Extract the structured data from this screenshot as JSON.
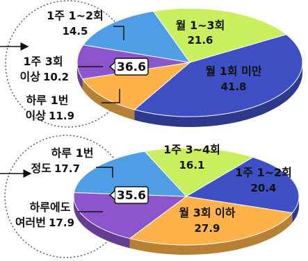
{
  "colors": {
    "sky_blue": "#4f9ee6",
    "lime": "#c9ef5e",
    "royal_blue": "#3f4fc4",
    "orange": "#ffb24a",
    "purple": "#8c55cc"
  },
  "chart_data": [
    {
      "type": "pie",
      "unit": "%",
      "callout_value": "36.6",
      "slices": [
        {
          "label": "월 1~3회",
          "value": 21.6,
          "value_text": "21.6",
          "color": "#c9ef5e"
        },
        {
          "label": "월 1회 미만",
          "value": 41.8,
          "value_text": "41.8",
          "color": "#3f4fc4"
        },
        {
          "label": "하루 1번 이상",
          "label_lines": [
            "하루 1번",
            "이상"
          ],
          "value": 11.9,
          "value_text": "11.9",
          "color": "#ffb24a"
        },
        {
          "label": "1주 3회 이상",
          "label_lines": [
            "1주 3회",
            "이상"
          ],
          "value": 10.2,
          "value_text": "10.2",
          "color": "#8c55cc"
        },
        {
          "label": "1주 1~2회",
          "value": 14.5,
          "value_text": "14.5",
          "color": "#4f9ee6"
        }
      ]
    },
    {
      "type": "pie",
      "unit": "%",
      "callout_value": "35.6",
      "slices": [
        {
          "label": "1주 3~4회",
          "value": 16.1,
          "value_text": "16.1",
          "color": "#c9ef5e"
        },
        {
          "label": "1주 1~2회",
          "value": 20.4,
          "value_text": "20.4",
          "color": "#3f4fc4"
        },
        {
          "label": "월 3회 이하",
          "value": 27.9,
          "value_text": "27.9",
          "color": "#ffb24a"
        },
        {
          "label": "하루에도 여러번",
          "label_lines": [
            "하루에도",
            "여러번"
          ],
          "value": 17.9,
          "value_text": "17.9",
          "color": "#8c55cc"
        },
        {
          "label": "하루 1번 정도",
          "label_lines": [
            "하루 1번",
            "정도"
          ],
          "value": 17.7,
          "value_text": "17.7",
          "color": "#4f9ee6"
        }
      ]
    }
  ]
}
